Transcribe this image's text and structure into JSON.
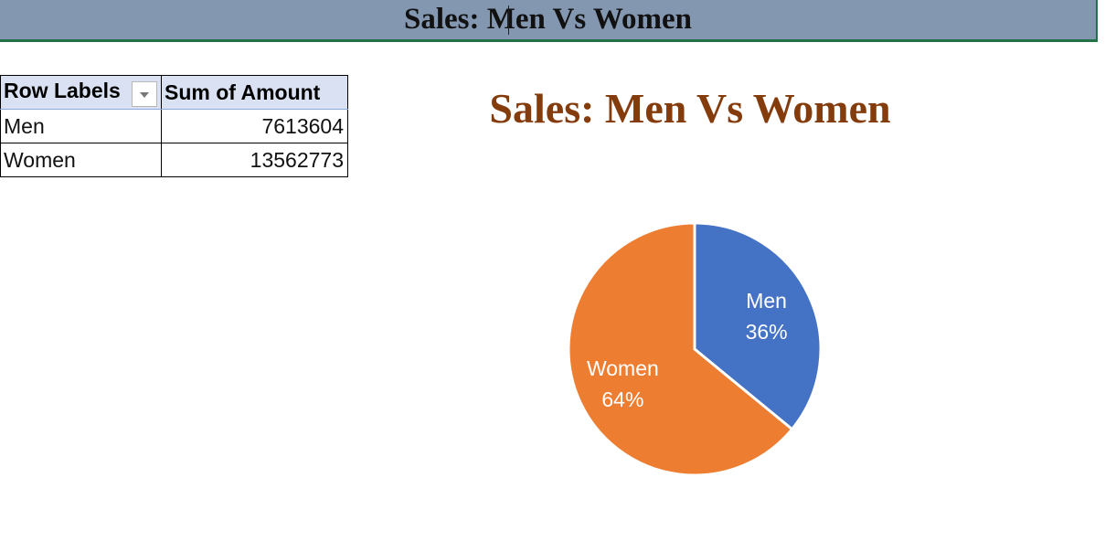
{
  "banner": {
    "title": "Sales: Men Vs Women"
  },
  "pivot": {
    "headers": [
      "Row Labels",
      "Sum of Amount"
    ],
    "rows": [
      {
        "label": "Men",
        "value": "7613604"
      },
      {
        "label": "Women",
        "value": "13562773"
      }
    ]
  },
  "chart_data": {
    "type": "pie",
    "title": "Sales: Men Vs Women",
    "categories": [
      "Men",
      "Women"
    ],
    "values": [
      7613604,
      13562773
    ],
    "data_labels": [
      "36%",
      "64%"
    ],
    "colors": [
      "#4472c4",
      "#ed7d31"
    ],
    "legend": "none"
  }
}
